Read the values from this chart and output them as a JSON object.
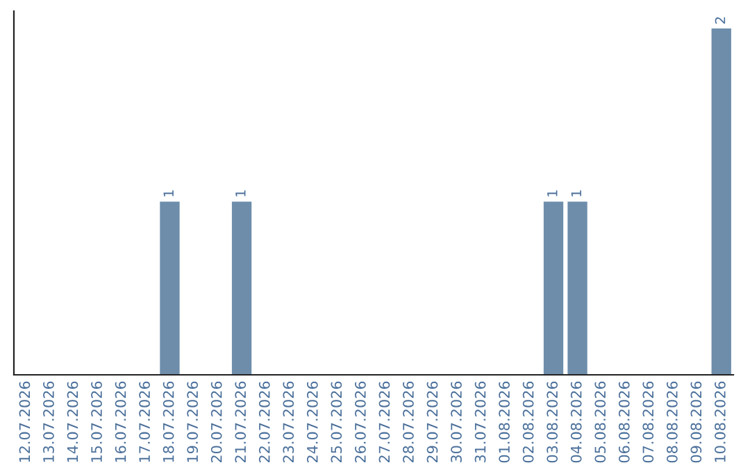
{
  "chart_data": {
    "type": "bar",
    "categories": [
      "12.07.2026",
      "13.07.2026",
      "14.07.2026",
      "15.07.2026",
      "16.07.2026",
      "17.07.2026",
      "18.07.2026",
      "19.07.2026",
      "20.07.2026",
      "21.07.2026",
      "22.07.2026",
      "23.07.2026",
      "24.07.2026",
      "25.07.2026",
      "26.07.2026",
      "27.07.2026",
      "28.07.2026",
      "29.07.2026",
      "30.07.2026",
      "31.07.2026",
      "01.08.2026",
      "02.08.2026",
      "03.08.2026",
      "04.08.2026",
      "05.08.2026",
      "06.08.2026",
      "07.08.2026",
      "08.08.2026",
      "09.08.2026",
      "10.08.2026"
    ],
    "values": [
      0,
      0,
      0,
      0,
      0,
      0,
      1,
      0,
      0,
      1,
      0,
      0,
      0,
      0,
      0,
      0,
      0,
      0,
      0,
      0,
      0,
      0,
      1,
      1,
      0,
      0,
      0,
      0,
      0,
      2
    ],
    "value_labels": [
      null,
      null,
      null,
      null,
      null,
      null,
      "1",
      null,
      null,
      "1",
      null,
      null,
      null,
      null,
      null,
      null,
      null,
      null,
      null,
      null,
      null,
      null,
      "1",
      "1",
      null,
      null,
      null,
      null,
      null,
      "2"
    ],
    "color": "#6d8dab",
    "tick_labels": "x",
    "grid": false,
    "legend": false
  }
}
